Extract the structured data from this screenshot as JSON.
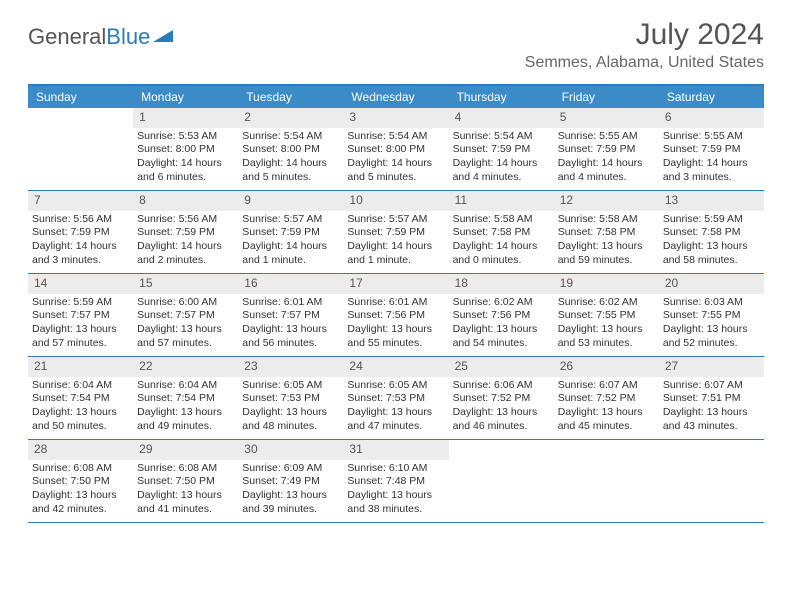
{
  "logo": {
    "text1": "General",
    "text2": "Blue"
  },
  "title": "July 2024",
  "location": "Semmes, Alabama, United States",
  "colors": {
    "header_bg": "#3b8bc9",
    "border": "#2b7bbf",
    "daynum_bg": "#ececec"
  },
  "weekdays": [
    "Sunday",
    "Monday",
    "Tuesday",
    "Wednesday",
    "Thursday",
    "Friday",
    "Saturday"
  ],
  "weeks": [
    [
      null,
      {
        "n": "1",
        "sr": "Sunrise: 5:53 AM",
        "ss": "Sunset: 8:00 PM",
        "dl": "Daylight: 14 hours and 6 minutes."
      },
      {
        "n": "2",
        "sr": "Sunrise: 5:54 AM",
        "ss": "Sunset: 8:00 PM",
        "dl": "Daylight: 14 hours and 5 minutes."
      },
      {
        "n": "3",
        "sr": "Sunrise: 5:54 AM",
        "ss": "Sunset: 8:00 PM",
        "dl": "Daylight: 14 hours and 5 minutes."
      },
      {
        "n": "4",
        "sr": "Sunrise: 5:54 AM",
        "ss": "Sunset: 7:59 PM",
        "dl": "Daylight: 14 hours and 4 minutes."
      },
      {
        "n": "5",
        "sr": "Sunrise: 5:55 AM",
        "ss": "Sunset: 7:59 PM",
        "dl": "Daylight: 14 hours and 4 minutes."
      },
      {
        "n": "6",
        "sr": "Sunrise: 5:55 AM",
        "ss": "Sunset: 7:59 PM",
        "dl": "Daylight: 14 hours and 3 minutes."
      }
    ],
    [
      {
        "n": "7",
        "sr": "Sunrise: 5:56 AM",
        "ss": "Sunset: 7:59 PM",
        "dl": "Daylight: 14 hours and 3 minutes."
      },
      {
        "n": "8",
        "sr": "Sunrise: 5:56 AM",
        "ss": "Sunset: 7:59 PM",
        "dl": "Daylight: 14 hours and 2 minutes."
      },
      {
        "n": "9",
        "sr": "Sunrise: 5:57 AM",
        "ss": "Sunset: 7:59 PM",
        "dl": "Daylight: 14 hours and 1 minute."
      },
      {
        "n": "10",
        "sr": "Sunrise: 5:57 AM",
        "ss": "Sunset: 7:59 PM",
        "dl": "Daylight: 14 hours and 1 minute."
      },
      {
        "n": "11",
        "sr": "Sunrise: 5:58 AM",
        "ss": "Sunset: 7:58 PM",
        "dl": "Daylight: 14 hours and 0 minutes."
      },
      {
        "n": "12",
        "sr": "Sunrise: 5:58 AM",
        "ss": "Sunset: 7:58 PM",
        "dl": "Daylight: 13 hours and 59 minutes."
      },
      {
        "n": "13",
        "sr": "Sunrise: 5:59 AM",
        "ss": "Sunset: 7:58 PM",
        "dl": "Daylight: 13 hours and 58 minutes."
      }
    ],
    [
      {
        "n": "14",
        "sr": "Sunrise: 5:59 AM",
        "ss": "Sunset: 7:57 PM",
        "dl": "Daylight: 13 hours and 57 minutes."
      },
      {
        "n": "15",
        "sr": "Sunrise: 6:00 AM",
        "ss": "Sunset: 7:57 PM",
        "dl": "Daylight: 13 hours and 57 minutes."
      },
      {
        "n": "16",
        "sr": "Sunrise: 6:01 AM",
        "ss": "Sunset: 7:57 PM",
        "dl": "Daylight: 13 hours and 56 minutes."
      },
      {
        "n": "17",
        "sr": "Sunrise: 6:01 AM",
        "ss": "Sunset: 7:56 PM",
        "dl": "Daylight: 13 hours and 55 minutes."
      },
      {
        "n": "18",
        "sr": "Sunrise: 6:02 AM",
        "ss": "Sunset: 7:56 PM",
        "dl": "Daylight: 13 hours and 54 minutes."
      },
      {
        "n": "19",
        "sr": "Sunrise: 6:02 AM",
        "ss": "Sunset: 7:55 PM",
        "dl": "Daylight: 13 hours and 53 minutes."
      },
      {
        "n": "20",
        "sr": "Sunrise: 6:03 AM",
        "ss": "Sunset: 7:55 PM",
        "dl": "Daylight: 13 hours and 52 minutes."
      }
    ],
    [
      {
        "n": "21",
        "sr": "Sunrise: 6:04 AM",
        "ss": "Sunset: 7:54 PM",
        "dl": "Daylight: 13 hours and 50 minutes."
      },
      {
        "n": "22",
        "sr": "Sunrise: 6:04 AM",
        "ss": "Sunset: 7:54 PM",
        "dl": "Daylight: 13 hours and 49 minutes."
      },
      {
        "n": "23",
        "sr": "Sunrise: 6:05 AM",
        "ss": "Sunset: 7:53 PM",
        "dl": "Daylight: 13 hours and 48 minutes."
      },
      {
        "n": "24",
        "sr": "Sunrise: 6:05 AM",
        "ss": "Sunset: 7:53 PM",
        "dl": "Daylight: 13 hours and 47 minutes."
      },
      {
        "n": "25",
        "sr": "Sunrise: 6:06 AM",
        "ss": "Sunset: 7:52 PM",
        "dl": "Daylight: 13 hours and 46 minutes."
      },
      {
        "n": "26",
        "sr": "Sunrise: 6:07 AM",
        "ss": "Sunset: 7:52 PM",
        "dl": "Daylight: 13 hours and 45 minutes."
      },
      {
        "n": "27",
        "sr": "Sunrise: 6:07 AM",
        "ss": "Sunset: 7:51 PM",
        "dl": "Daylight: 13 hours and 43 minutes."
      }
    ],
    [
      {
        "n": "28",
        "sr": "Sunrise: 6:08 AM",
        "ss": "Sunset: 7:50 PM",
        "dl": "Daylight: 13 hours and 42 minutes."
      },
      {
        "n": "29",
        "sr": "Sunrise: 6:08 AM",
        "ss": "Sunset: 7:50 PM",
        "dl": "Daylight: 13 hours and 41 minutes."
      },
      {
        "n": "30",
        "sr": "Sunrise: 6:09 AM",
        "ss": "Sunset: 7:49 PM",
        "dl": "Daylight: 13 hours and 39 minutes."
      },
      {
        "n": "31",
        "sr": "Sunrise: 6:10 AM",
        "ss": "Sunset: 7:48 PM",
        "dl": "Daylight: 13 hours and 38 minutes."
      },
      null,
      null,
      null
    ]
  ]
}
